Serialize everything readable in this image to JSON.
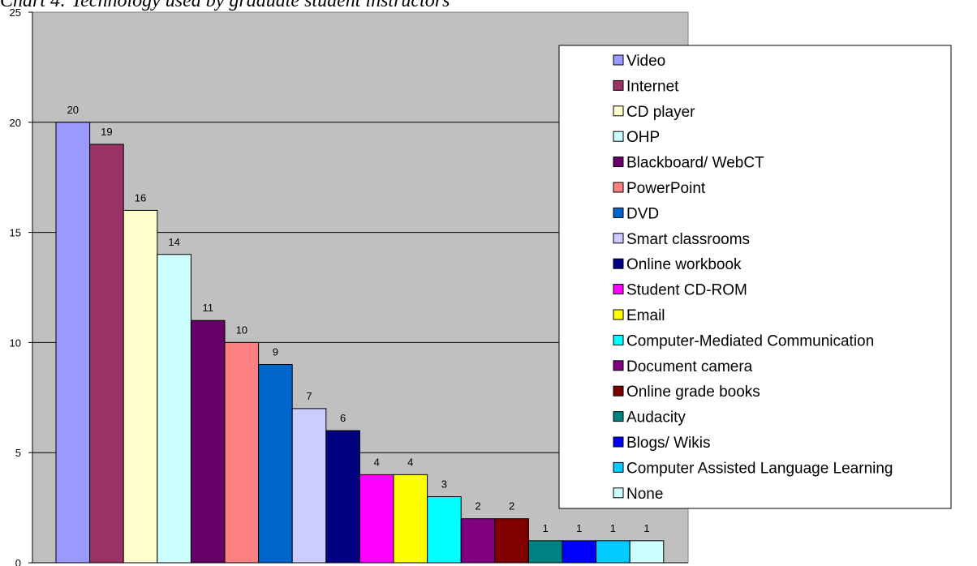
{
  "chart_data": {
    "type": "bar",
    "title": "Chart 4: Technology used by graduate student instructors",
    "xlabel": "",
    "ylabel": "",
    "ylim": [
      0,
      25
    ],
    "yticks": [
      0,
      5,
      10,
      15,
      20,
      25
    ],
    "grid": true,
    "legend_position": "right",
    "plot_background": "#c0c0c0",
    "categories": [
      "Video",
      "Internet",
      "CD player",
      "OHP",
      "Blackboard/ WebCT",
      "PowerPoint",
      "DVD",
      "Smart classrooms",
      "Online workbook",
      "Student CD-ROM",
      "Email",
      "Computer-Mediated Communication",
      "Document camera",
      "Online grade books",
      "Audacity",
      "Blogs/ Wikis",
      "Computer Assisted Language Learning",
      "None"
    ],
    "values": [
      20,
      19,
      16,
      14,
      11,
      10,
      9,
      7,
      6,
      4,
      4,
      3,
      2,
      2,
      1,
      1,
      1,
      1
    ],
    "colors": [
      "#9999ff",
      "#993366",
      "#ffffcc",
      "#ccffff",
      "#660066",
      "#ff8080",
      "#0066cc",
      "#ccccff",
      "#000080",
      "#ff00ff",
      "#ffff00",
      "#00ffff",
      "#800080",
      "#800000",
      "#008080",
      "#0000ff",
      "#00ccff",
      "#ccffff"
    ]
  }
}
